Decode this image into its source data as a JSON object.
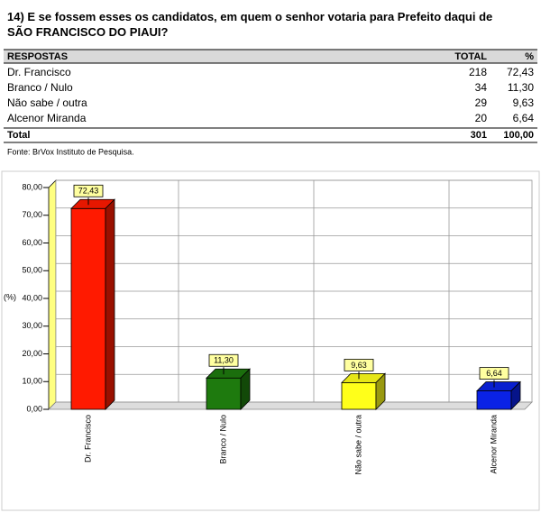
{
  "title": "14) E se fossem esses os candidatos, em quem o senhor votaria para Prefeito daqui de SÃO FRANCISCO DO PIAUI?",
  "table": {
    "header": [
      "RESPOSTAS",
      "TOTAL",
      "%"
    ],
    "rows": [
      [
        "Dr. Francisco",
        "218",
        "72,43"
      ],
      [
        "Branco / Nulo",
        "34",
        "11,30"
      ],
      [
        "Não sabe / outra",
        "29",
        "9,63"
      ],
      [
        "Alcenor Miranda",
        "20",
        "6,64"
      ]
    ],
    "total": [
      "Total",
      "301",
      "100,00"
    ]
  },
  "source": "Fonte: BrVox Instituto de Pesquisa.",
  "chart_data": {
    "type": "bar3d",
    "y_label": "(%)",
    "categories": [
      "Dr. Francisco",
      "Branco / Nulo",
      "Não sabe / outra",
      "Alcenor Miranda"
    ],
    "values": [
      72.43,
      11.3,
      9.63,
      6.64
    ],
    "value_labels": [
      "72,43",
      "11,30",
      "9,63",
      "6,64"
    ],
    "colors": [
      "#ff1a00",
      "#1e7a0e",
      "#ffff1a",
      "#0a22e6"
    ],
    "ylim": [
      0,
      80
    ],
    "yticks": [
      {
        "value": 0,
        "label": "0,00"
      },
      {
        "value": 10,
        "label": "10,00"
      },
      {
        "value": 20,
        "label": "20,00"
      },
      {
        "value": 30,
        "label": "30,00"
      },
      {
        "value": 40,
        "label": "40,00"
      },
      {
        "value": 50,
        "label": "50,00"
      },
      {
        "value": 60,
        "label": "60,00"
      },
      {
        "value": 70,
        "label": "70,00"
      },
      {
        "value": 80,
        "label": "80,00"
      }
    ],
    "grid": true
  }
}
